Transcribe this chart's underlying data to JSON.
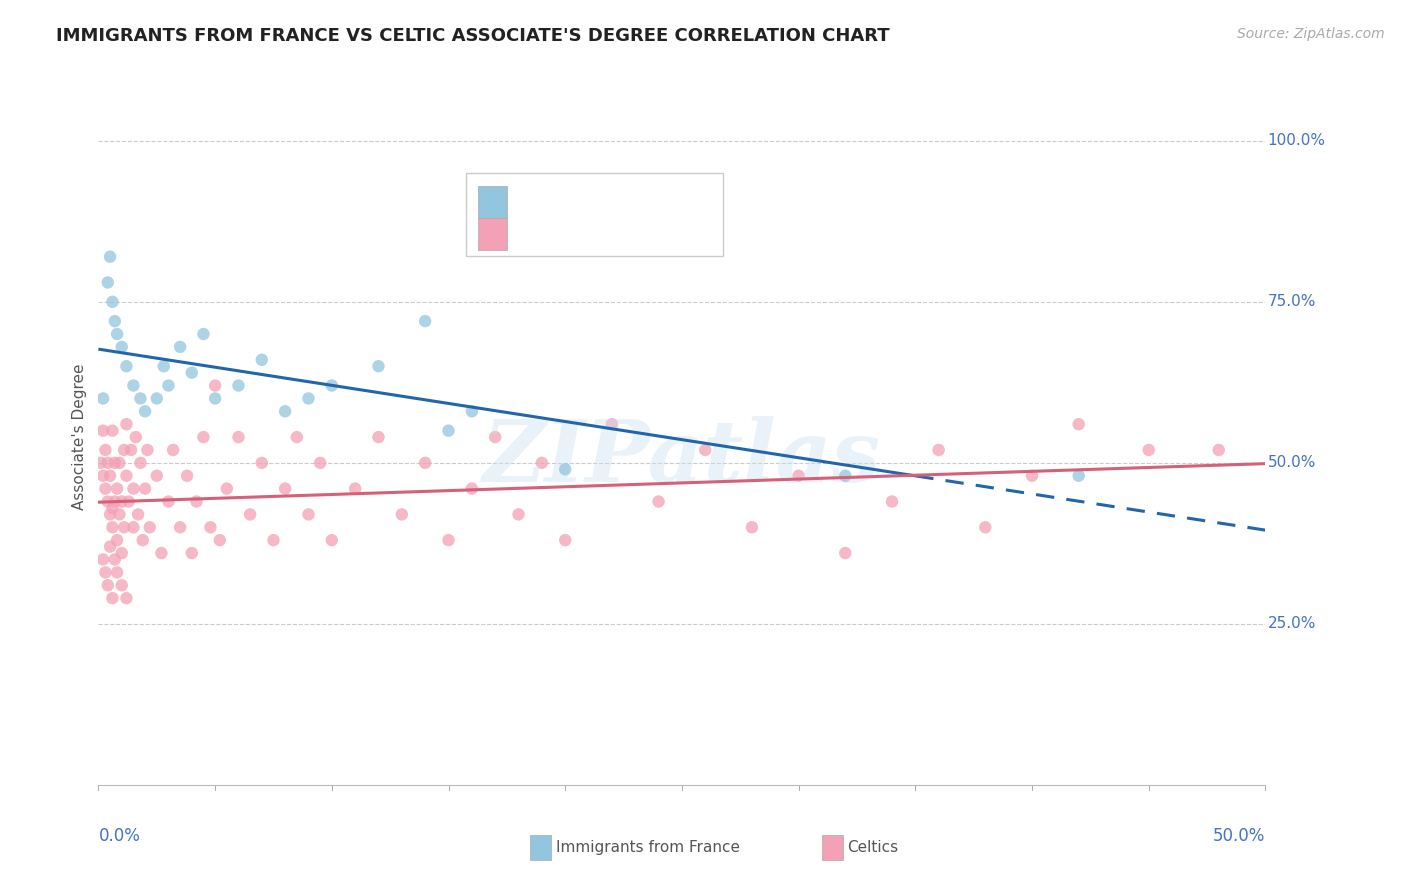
{
  "title": "IMMIGRANTS FROM FRANCE VS CELTIC ASSOCIATE'S DEGREE CORRELATION CHART",
  "source": "Source: ZipAtlas.com",
  "ylabel": "Associate's Degree",
  "xlim": [
    0.0,
    0.5
  ],
  "ylim": [
    0.0,
    1.08
  ],
  "yticks": [
    0.25,
    0.5,
    0.75,
    1.0
  ],
  "ytick_labels": [
    "25.0%",
    "50.0%",
    "75.0%",
    "100.0%"
  ],
  "color_blue": "#92c5de",
  "color_blue_line": "#2166ac",
  "color_pink": "#f4a0b5",
  "color_pink_line": "#d6607a",
  "color_text_blue": "#4472c4",
  "watermark": "ZIPatlas",
  "blue_scatter_x": [
    0.002,
    0.004,
    0.005,
    0.006,
    0.007,
    0.008,
    0.01,
    0.012,
    0.015,
    0.018,
    0.02,
    0.025,
    0.028,
    0.03,
    0.035,
    0.04,
    0.045,
    0.05,
    0.06,
    0.07,
    0.08,
    0.09,
    0.1,
    0.12,
    0.14,
    0.15,
    0.16,
    0.2,
    0.32,
    0.42
  ],
  "blue_scatter_y": [
    0.6,
    0.78,
    0.82,
    0.75,
    0.72,
    0.7,
    0.68,
    0.65,
    0.62,
    0.6,
    0.58,
    0.6,
    0.65,
    0.62,
    0.68,
    0.64,
    0.7,
    0.6,
    0.62,
    0.66,
    0.58,
    0.6,
    0.62,
    0.65,
    0.72,
    0.55,
    0.58,
    0.49,
    0.48,
    0.48
  ],
  "pink_scatter_x": [
    0.001,
    0.002,
    0.002,
    0.003,
    0.003,
    0.004,
    0.004,
    0.005,
    0.005,
    0.006,
    0.006,
    0.006,
    0.007,
    0.007,
    0.008,
    0.008,
    0.009,
    0.009,
    0.01,
    0.01,
    0.011,
    0.011,
    0.012,
    0.012,
    0.013,
    0.014,
    0.015,
    0.015,
    0.016,
    0.017,
    0.018,
    0.019,
    0.02,
    0.021,
    0.022,
    0.025,
    0.027,
    0.03,
    0.032,
    0.035,
    0.038,
    0.04,
    0.042,
    0.045,
    0.048,
    0.05,
    0.052,
    0.055,
    0.06,
    0.065,
    0.07,
    0.075,
    0.08,
    0.085,
    0.09,
    0.095,
    0.1,
    0.11,
    0.12,
    0.13,
    0.14,
    0.15,
    0.16,
    0.17,
    0.18,
    0.19,
    0.2,
    0.22,
    0.24,
    0.26,
    0.28,
    0.3,
    0.32,
    0.34,
    0.36,
    0.38,
    0.4,
    0.42,
    0.45,
    0.48,
    0.002,
    0.003,
    0.004,
    0.005,
    0.006,
    0.007,
    0.008,
    0.01,
    0.012
  ],
  "pink_scatter_y": [
    0.5,
    0.48,
    0.55,
    0.46,
    0.52,
    0.44,
    0.5,
    0.42,
    0.48,
    0.55,
    0.43,
    0.4,
    0.5,
    0.44,
    0.38,
    0.46,
    0.42,
    0.5,
    0.36,
    0.44,
    0.52,
    0.4,
    0.48,
    0.56,
    0.44,
    0.52,
    0.4,
    0.46,
    0.54,
    0.42,
    0.5,
    0.38,
    0.46,
    0.52,
    0.4,
    0.48,
    0.36,
    0.44,
    0.52,
    0.4,
    0.48,
    0.36,
    0.44,
    0.54,
    0.4,
    0.62,
    0.38,
    0.46,
    0.54,
    0.42,
    0.5,
    0.38,
    0.46,
    0.54,
    0.42,
    0.5,
    0.38,
    0.46,
    0.54,
    0.42,
    0.5,
    0.38,
    0.46,
    0.54,
    0.42,
    0.5,
    0.38,
    0.56,
    0.44,
    0.52,
    0.4,
    0.48,
    0.36,
    0.44,
    0.52,
    0.4,
    0.48,
    0.56,
    0.52,
    0.52,
    0.35,
    0.33,
    0.31,
    0.37,
    0.29,
    0.35,
    0.33,
    0.31,
    0.29
  ]
}
